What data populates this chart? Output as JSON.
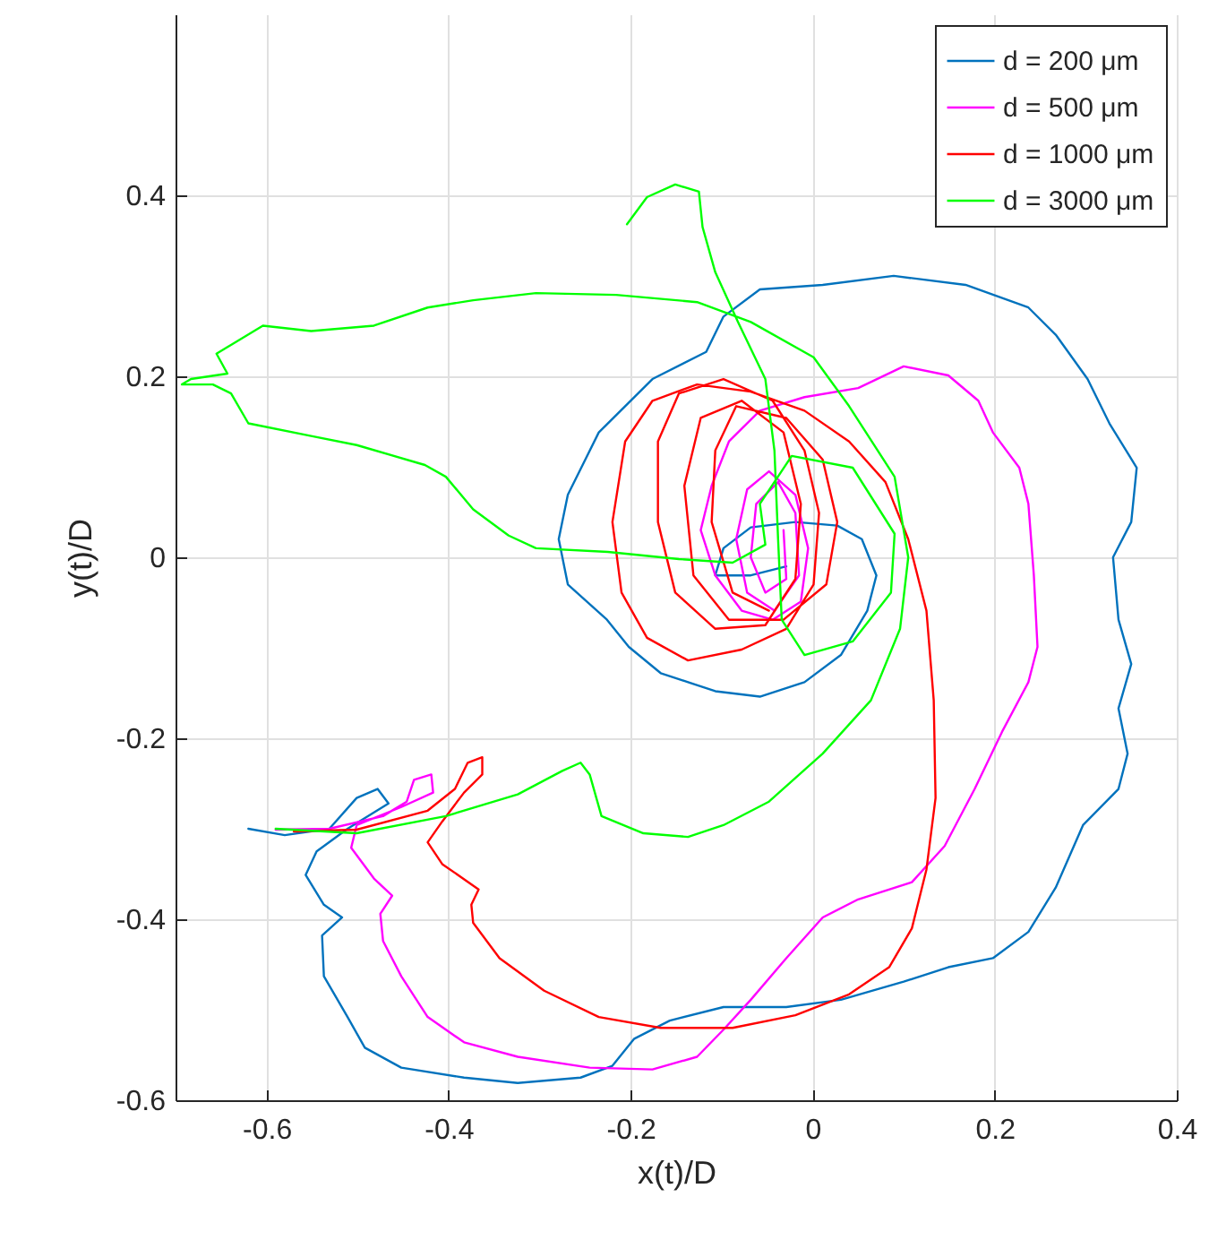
{
  "chart_data": {
    "type": "line",
    "xlabel": "x(t)/D",
    "ylabel": "y(t)/D",
    "xlim": [
      -0.7,
      0.4
    ],
    "ylim": [
      -0.6,
      0.6
    ],
    "xticks": [
      -0.6,
      -0.4,
      -0.2,
      0,
      0.2,
      0.4
    ],
    "yticks": [
      -0.6,
      -0.4,
      -0.2,
      0,
      0.2,
      0.4
    ],
    "grid": true,
    "legend": "top right",
    "series": [
      {
        "name": "d = 200 μm",
        "color": "#0072bd",
        "x": [
          -0.62,
          -0.58,
          -0.531,
          -0.501,
          -0.478,
          -0.466,
          -0.511,
          -0.545,
          -0.557,
          -0.537,
          -0.517,
          -0.539,
          -0.537,
          -0.511,
          -0.492,
          -0.452,
          -0.383,
          -0.324,
          -0.255,
          -0.22,
          -0.196,
          -0.157,
          -0.098,
          -0.029,
          0.031,
          0.1,
          0.149,
          0.198,
          0.237,
          0.267,
          0.297,
          0.336,
          0.346,
          0.336,
          0.35,
          0.336,
          0.33,
          0.35,
          0.356,
          0.326,
          0.302,
          0.267,
          0.237,
          0.168,
          0.089,
          0.011,
          -0.058,
          -0.098,
          -0.117,
          -0.176,
          -0.235,
          -0.269,
          -0.279,
          -0.269,
          -0.226,
          -0.202,
          -0.167,
          -0.107,
          -0.058,
          -0.009,
          0.031,
          0.06,
          0.07,
          0.054,
          0.027,
          -0.019,
          -0.068,
          -0.098,
          -0.107,
          -0.068,
          -0.029
        ],
        "values": [
          -0.3,
          -0.307,
          -0.3,
          -0.266,
          -0.256,
          -0.272,
          -0.3,
          -0.325,
          -0.351,
          -0.384,
          -0.398,
          -0.418,
          -0.463,
          -0.508,
          -0.542,
          -0.564,
          -0.575,
          -0.581,
          -0.575,
          -0.562,
          -0.532,
          -0.512,
          -0.497,
          -0.497,
          -0.489,
          -0.469,
          -0.453,
          -0.443,
          -0.414,
          -0.365,
          -0.296,
          -0.256,
          -0.217,
          -0.167,
          -0.118,
          -0.069,
          0,
          0.039,
          0.099,
          0.148,
          0.197,
          0.246,
          0.276,
          0.301,
          0.311,
          0.301,
          0.296,
          0.266,
          0.227,
          0.197,
          0.138,
          0.069,
          0.02,
          -0.03,
          -0.069,
          -0.099,
          -0.128,
          -0.148,
          -0.154,
          -0.138,
          -0.108,
          -0.059,
          -0.02,
          0.02,
          0.035,
          0.039,
          0.033,
          0.01,
          -0.02,
          -0.02,
          -0.01
        ]
      },
      {
        "name": "d = 500 μm",
        "color": "#ff00ff",
        "x": [
          -0.59,
          -0.531,
          -0.472,
          -0.446,
          -0.438,
          -0.419,
          -0.417,
          -0.452,
          -0.501,
          -0.507,
          -0.482,
          -0.462,
          -0.475,
          -0.472,
          -0.452,
          -0.423,
          -0.383,
          -0.324,
          -0.245,
          -0.176,
          -0.127,
          -0.098,
          -0.068,
          -0.029,
          0.011,
          0.05,
          0.109,
          0.145,
          0.178,
          0.208,
          0.237,
          0.247,
          0.243,
          0.237,
          0.227,
          0.198,
          0.182,
          0.149,
          0.1,
          0.05,
          -0.009,
          -0.058,
          -0.092,
          -0.111,
          -0.123,
          -0.107,
          -0.078,
          -0.044,
          -0.013,
          -0.005,
          -0.019,
          -0.048,
          -0.072,
          -0.084,
          -0.072,
          -0.042,
          -0.015,
          -0.019,
          -0.038,
          -0.062,
          -0.068,
          -0.052,
          -0.029,
          -0.032
        ],
        "values": [
          -0.301,
          -0.3,
          -0.286,
          -0.27,
          -0.246,
          -0.24,
          -0.26,
          -0.276,
          -0.296,
          -0.321,
          -0.355,
          -0.374,
          -0.394,
          -0.424,
          -0.463,
          -0.508,
          -0.536,
          -0.552,
          -0.564,
          -0.566,
          -0.552,
          -0.522,
          -0.489,
          -0.443,
          -0.398,
          -0.378,
          -0.359,
          -0.319,
          -0.256,
          -0.193,
          -0.138,
          -0.099,
          -0.02,
          0.059,
          0.099,
          0.138,
          0.173,
          0.201,
          0.211,
          0.187,
          0.177,
          0.162,
          0.128,
          0.079,
          0.03,
          -0.02,
          -0.059,
          -0.069,
          -0.049,
          0.01,
          0.069,
          0.095,
          0.075,
          0.02,
          -0.039,
          -0.059,
          -0.02,
          0.049,
          0.083,
          0.059,
          0,
          -0.039,
          -0.024,
          0.03
        ]
      },
      {
        "name": "d = 1000 μm",
        "color": "#ff0000",
        "x": [
          -0.57,
          -0.501,
          -0.423,
          -0.393,
          -0.379,
          -0.363,
          -0.363,
          -0.383,
          -0.407,
          -0.423,
          -0.407,
          -0.367,
          -0.375,
          -0.373,
          -0.344,
          -0.295,
          -0.235,
          -0.167,
          -0.088,
          -0.019,
          0.04,
          0.084,
          0.109,
          0.125,
          0.135,
          0.133,
          0.125,
          0.105,
          0.08,
          0.04,
          -0.009,
          -0.068,
          -0.127,
          -0.176,
          -0.206,
          -0.22,
          -0.21,
          -0.182,
          -0.137,
          -0.078,
          -0.029,
          0.001,
          0.007,
          -0.009,
          -0.044,
          -0.098,
          -0.147,
          -0.17,
          -0.17,
          -0.151,
          -0.107,
          -0.052,
          -0.019,
          -0.013,
          -0.032,
          -0.078,
          -0.123,
          -0.141,
          -0.131,
          -0.092,
          -0.032,
          0.015,
          0.027,
          0.011,
          -0.029,
          -0.084,
          -0.107,
          -0.111,
          -0.088,
          -0.048
        ],
        "values": [
          -0.303,
          -0.301,
          -0.28,
          -0.256,
          -0.227,
          -0.221,
          -0.24,
          -0.26,
          -0.292,
          -0.315,
          -0.339,
          -0.367,
          -0.384,
          -0.404,
          -0.443,
          -0.479,
          -0.508,
          -0.52,
          -0.52,
          -0.506,
          -0.483,
          -0.453,
          -0.41,
          -0.345,
          -0.266,
          -0.158,
          -0.059,
          0.02,
          0.083,
          0.128,
          0.162,
          0.183,
          0.191,
          0.173,
          0.128,
          0.039,
          -0.039,
          -0.089,
          -0.114,
          -0.102,
          -0.079,
          -0.03,
          0.049,
          0.118,
          0.173,
          0.197,
          0.181,
          0.128,
          0.039,
          -0.039,
          -0.079,
          -0.075,
          -0.024,
          0.059,
          0.138,
          0.173,
          0.154,
          0.079,
          -0.02,
          -0.069,
          -0.069,
          -0.03,
          0.039,
          0.108,
          0.154,
          0.167,
          0.118,
          0.039,
          -0.039,
          -0.059
        ]
      },
      {
        "name": "d = 3000 μm",
        "color": "#00ff00",
        "x": [
          -0.59,
          -0.501,
          -0.403,
          -0.324,
          -0.275,
          -0.255,
          -0.245,
          -0.232,
          -0.186,
          -0.137,
          -0.098,
          -0.048,
          0.011,
          0.064,
          0.096,
          0.105,
          0.09,
          0.04,
          0.001,
          -0.068,
          -0.127,
          -0.216,
          -0.304,
          -0.373,
          -0.423,
          -0.482,
          -0.551,
          -0.604,
          -0.655,
          -0.643,
          -0.683,
          -0.693,
          -0.659,
          -0.639,
          -0.62,
          -0.551,
          -0.501,
          -0.426,
          -0.403,
          -0.373,
          -0.334,
          -0.304,
          -0.225,
          -0.147,
          -0.088,
          -0.052,
          -0.058,
          -0.023,
          0.044,
          0.09,
          0.086,
          0.044,
          -0.009,
          -0.034,
          -0.038,
          -0.042,
          -0.052,
          -0.082,
          -0.107,
          -0.121,
          -0.125,
          -0.151,
          -0.182,
          -0.204
        ],
        "values": [
          -0.3,
          -0.305,
          -0.286,
          -0.262,
          -0.236,
          -0.227,
          -0.24,
          -0.286,
          -0.305,
          -0.309,
          -0.296,
          -0.27,
          -0.217,
          -0.158,
          -0.079,
          0,
          0.089,
          0.167,
          0.221,
          0.26,
          0.282,
          0.29,
          0.292,
          0.284,
          0.276,
          0.256,
          0.25,
          0.256,
          0.225,
          0.203,
          0.197,
          0.191,
          0.191,
          0.181,
          0.148,
          0.134,
          0.124,
          0.102,
          0.089,
          0.053,
          0.024,
          0.01,
          0.006,
          -0.002,
          -0.006,
          0.014,
          0.059,
          0.112,
          0.099,
          0.026,
          -0.039,
          -0.093,
          -0.108,
          -0.069,
          0.02,
          0.118,
          0.197,
          0.26,
          0.315,
          0.365,
          0.404,
          0.412,
          0.398,
          0.368
        ]
      }
    ]
  }
}
